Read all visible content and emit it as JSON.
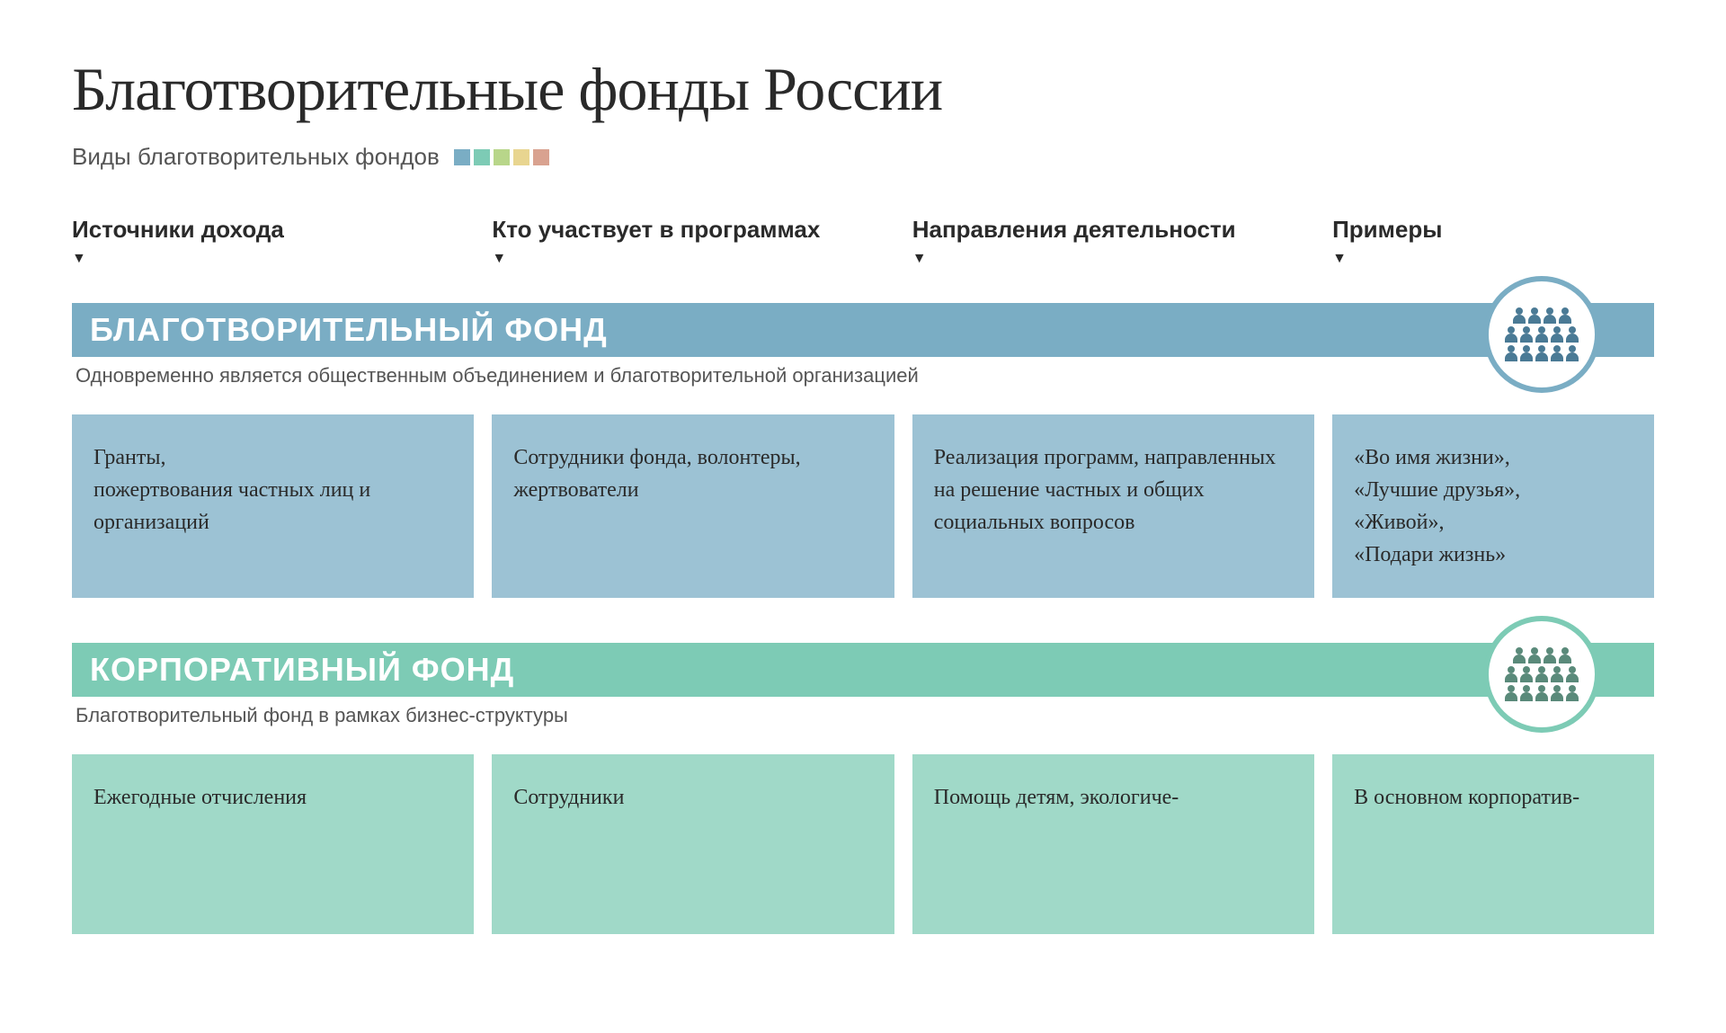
{
  "title": "Благотворительные фонды России",
  "subtitle": "Виды благотворительных фондов",
  "legend_colors": [
    "#7aadc4",
    "#7dcbb5",
    "#b8d68a",
    "#e8d590",
    "#d9a290"
  ],
  "columns": [
    "Источники дохода",
    "Кто участвует в программах",
    "Направления деятельности",
    "Примеры"
  ],
  "sections": [
    {
      "title": "БЛАГОТВОРИТЕЛЬНЫЙ ФОНД",
      "description": "Одновременно является общественным объединением и благотворительной организацией",
      "banner_color": "#7aadc4",
      "card_color": "#9cc2d4",
      "icon_border_color": "#7aadc4",
      "person_color": "#4a7a95",
      "cards": [
        "Гранты,\nпожертвования частных лиц и организаций",
        "Сотрудники фонда, волонтеры, жертвователи",
        "Реализация программ, направленных на решение частных и общих социальных вопросов",
        "«Во имя жизни»,\n«Лучшие друзья»,\n«Живой»,\n«Подари жизнь»"
      ]
    },
    {
      "title": "КОРПОРАТИВНЫЙ ФОНД",
      "description": "Благотворительный фонд в рамках бизнес-структуры",
      "banner_color": "#7dcbb5",
      "card_color": "#a0d9c8",
      "icon_border_color": "#7dcbb5",
      "person_color": "#5a8a7a",
      "cards": [
        "Ежегодные отчисления",
        "Сотрудники",
        "Помощь детям, экологиче-",
        "В основном корпоратив-"
      ]
    }
  ]
}
